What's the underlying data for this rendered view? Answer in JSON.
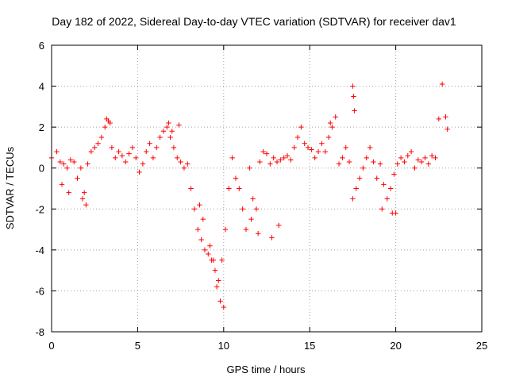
{
  "chart_data": {
    "type": "scatter",
    "title": "Day 182 of 2022, Sidereal Day-to-day VTEC variation (SDTVAR) for receiver dav1",
    "xlabel": "GPS time / hours",
    "ylabel": "SDTVAR / TECUs",
    "xlim": [
      0,
      25
    ],
    "ylim": [
      -8,
      6
    ],
    "xticks": [
      "0",
      "5",
      "10",
      "15",
      "20",
      "25"
    ],
    "yticks": [
      "-8",
      "-6",
      "-4",
      "-2",
      "0",
      "2",
      "4",
      "6"
    ],
    "grid": true,
    "marker": "+",
    "color": "#ff0000",
    "series": [
      {
        "name": "SDTVAR",
        "x": [
          0.0,
          0.3,
          0.5,
          0.7,
          0.9,
          1.1,
          1.3,
          1.5,
          1.7,
          1.9,
          2.1,
          2.3,
          2.5,
          2.7,
          2.9,
          3.1,
          3.3,
          3.5,
          3.7,
          3.9,
          4.1,
          4.3,
          4.5,
          4.7,
          4.9,
          5.1,
          5.3,
          5.5,
          5.7,
          5.9,
          6.1,
          6.3,
          6.5,
          6.7,
          6.9,
          7.1,
          7.3,
          7.5,
          7.7,
          7.9,
          8.1,
          8.3,
          8.5,
          8.7,
          8.9,
          9.1,
          9.3,
          9.5,
          9.7,
          9.9,
          10.1,
          10.3,
          10.5,
          10.7,
          10.9,
          11.1,
          11.3,
          11.5,
          11.7,
          11.9,
          12.1,
          12.3,
          12.5,
          12.7,
          12.9,
          13.1,
          13.3,
          13.5,
          13.7,
          13.9,
          14.1,
          14.3,
          14.5,
          14.7,
          14.9,
          15.1,
          15.3,
          15.5,
          15.7,
          15.9,
          16.1,
          16.3,
          16.5,
          16.7,
          16.9,
          17.1,
          17.3,
          17.5,
          17.7,
          17.9,
          18.1,
          18.3,
          18.5,
          18.7,
          18.9,
          19.1,
          19.3,
          19.5,
          19.7,
          19.9,
          20.1,
          20.3,
          20.5,
          20.7,
          20.9,
          21.1,
          21.3,
          21.5,
          21.7,
          21.9,
          22.1,
          22.3,
          0.6,
          1.0,
          1.8,
          2.0,
          3.2,
          3.4,
          6.8,
          7.0,
          7.4,
          8.6,
          8.8,
          9.2,
          9.4,
          9.6,
          9.8,
          10.0,
          11.6,
          12.0,
          12.8,
          13.2,
          16.2,
          17.5,
          17.55,
          17.6,
          19.2,
          19.8,
          20.0,
          22.5,
          22.7,
          22.9,
          23.0
        ],
        "y": [
          0.5,
          0.8,
          0.3,
          0.2,
          0.0,
          0.4,
          0.3,
          -0.5,
          0.0,
          -1.2,
          0.2,
          0.8,
          1.0,
          1.2,
          1.5,
          2.0,
          2.3,
          1.0,
          0.5,
          0.8,
          0.6,
          0.3,
          0.7,
          1.0,
          0.5,
          -0.2,
          0.2,
          0.8,
          1.2,
          0.5,
          1.0,
          1.5,
          1.8,
          2.0,
          1.5,
          1.0,
          0.5,
          0.3,
          0.0,
          0.2,
          -1.0,
          -2.0,
          -3.0,
          -3.5,
          -4.0,
          -4.2,
          -4.5,
          -5.0,
          -5.5,
          -4.5,
          -3.0,
          -1.0,
          0.5,
          -0.5,
          -1.0,
          -2.0,
          -3.0,
          0.0,
          -1.5,
          -2.0,
          0.3,
          0.8,
          0.7,
          0.2,
          0.5,
          0.3,
          0.4,
          0.5,
          0.6,
          0.4,
          1.0,
          1.5,
          2.0,
          1.2,
          1.0,
          0.9,
          0.5,
          0.8,
          1.2,
          0.8,
          1.5,
          2.0,
          2.5,
          0.2,
          0.5,
          1.0,
          0.3,
          -1.5,
          -1.0,
          -0.5,
          0.0,
          0.5,
          1.0,
          0.3,
          -0.5,
          0.2,
          -0.8,
          -1.5,
          -1.0,
          -0.3,
          0.2,
          0.5,
          0.3,
          0.6,
          0.8,
          0.0,
          0.4,
          0.3,
          0.5,
          0.2,
          0.6,
          0.5,
          -0.8,
          -1.2,
          -1.5,
          -1.8,
          2.4,
          2.2,
          2.2,
          1.8,
          2.1,
          -1.8,
          -2.5,
          -3.8,
          -4.5,
          -5.8,
          -6.5,
          -6.8,
          -2.5,
          -3.2,
          -3.4,
          -2.8,
          2.2,
          4.0,
          3.5,
          2.8,
          -2.0,
          -2.2,
          -2.2,
          2.4,
          4.1,
          2.5,
          1.9
        ]
      }
    ]
  }
}
